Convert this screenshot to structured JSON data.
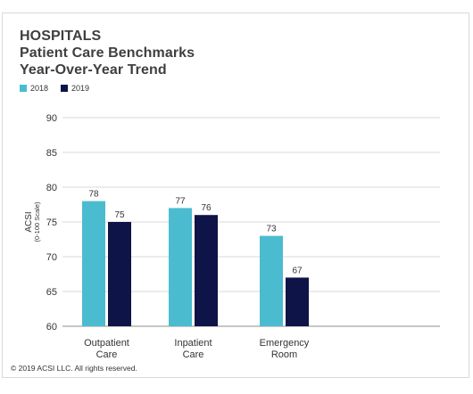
{
  "chart_data": {
    "type": "bar",
    "title": "HOSPITALS",
    "subtitle": "Patient Care Benchmarks",
    "subtitle2": "Year-Over-Year Trend",
    "ylabel": "ACSI",
    "ylabel_sub": "(0-100 Scale)",
    "xlabel": "",
    "ylim": [
      60,
      90
    ],
    "yticks": [
      60,
      65,
      70,
      75,
      80,
      85,
      90
    ],
    "grid": true,
    "legend_position": "top-left",
    "categories": [
      [
        "Outpatient",
        "Care"
      ],
      [
        "Inpatient",
        "Care"
      ],
      [
        "Emergency",
        "Room"
      ]
    ],
    "series": [
      {
        "name": "2018",
        "color": "#4bbccf",
        "values": [
          78,
          77,
          73
        ]
      },
      {
        "name": "2019",
        "color": "#0e1447",
        "values": [
          75,
          76,
          67
        ]
      }
    ]
  },
  "footer": {
    "copyright": "© 2019 ACSI LLC. All rights reserved."
  }
}
